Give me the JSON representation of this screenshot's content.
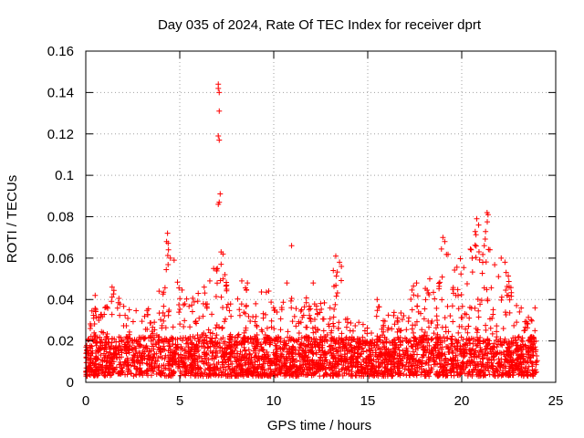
{
  "chart_data": {
    "type": "scatter",
    "title": "Day 035 of 2024, Rate Of TEC Index for receiver dprt",
    "xlabel": "GPS time / hours",
    "ylabel": "ROTI / TECUs",
    "xlim": [
      0,
      25
    ],
    "ylim": [
      0,
      0.16
    ],
    "xticks": [
      0,
      5,
      10,
      15,
      20,
      25
    ],
    "xtick_labels": [
      "0",
      "5",
      "10",
      "15",
      "20",
      "25"
    ],
    "yticks": [
      0,
      0.02,
      0.04,
      0.06,
      0.08,
      0.1,
      0.12,
      0.14,
      0.16
    ],
    "ytick_labels": [
      "0",
      "0.02",
      "0.04",
      "0.06",
      "0.08",
      "0.1",
      "0.12",
      "0.14",
      "0.16"
    ],
    "grid": true,
    "marker": "+",
    "marker_color": "#ff0000",
    "envelope": [
      [
        0.0,
        0.028
      ],
      [
        0.5,
        0.042
      ],
      [
        1.0,
        0.036
      ],
      [
        1.5,
        0.046
      ],
      [
        2.0,
        0.038
      ],
      [
        2.5,
        0.034
      ],
      [
        3.0,
        0.038
      ],
      [
        3.5,
        0.036
      ],
      [
        4.0,
        0.044
      ],
      [
        4.3,
        0.072
      ],
      [
        4.7,
        0.06
      ],
      [
        5.0,
        0.05
      ],
      [
        5.5,
        0.04
      ],
      [
        6.0,
        0.044
      ],
      [
        6.5,
        0.05
      ],
      [
        7.0,
        0.064
      ],
      [
        7.5,
        0.048
      ],
      [
        8.0,
        0.04
      ],
      [
        8.5,
        0.048
      ],
      [
        9.0,
        0.04
      ],
      [
        9.5,
        0.046
      ],
      [
        10.0,
        0.042
      ],
      [
        10.5,
        0.04
      ],
      [
        11.0,
        0.042
      ],
      [
        11.5,
        0.044
      ],
      [
        12.0,
        0.04
      ],
      [
        12.5,
        0.044
      ],
      [
        13.0,
        0.05
      ],
      [
        13.3,
        0.06
      ],
      [
        13.7,
        0.05
      ],
      [
        14.0,
        0.036
      ],
      [
        14.5,
        0.03
      ],
      [
        15.0,
        0.03
      ],
      [
        15.5,
        0.04
      ],
      [
        16.0,
        0.034
      ],
      [
        16.5,
        0.034
      ],
      [
        17.0,
        0.034
      ],
      [
        17.5,
        0.05
      ],
      [
        18.0,
        0.046
      ],
      [
        18.5,
        0.05
      ],
      [
        19.0,
        0.07
      ],
      [
        19.5,
        0.056
      ],
      [
        20.0,
        0.064
      ],
      [
        20.5,
        0.066
      ],
      [
        20.8,
        0.08
      ],
      [
        21.0,
        0.062
      ],
      [
        21.4,
        0.082
      ],
      [
        21.8,
        0.056
      ],
      [
        22.2,
        0.06
      ],
      [
        22.6,
        0.048
      ],
      [
        23.0,
        0.04
      ],
      [
        23.5,
        0.032
      ],
      [
        24.0,
        0.036
      ]
    ],
    "outliers": [
      {
        "x": 7.05,
        "y": 0.144
      },
      {
        "x": 7.05,
        "y": 0.142
      },
      {
        "x": 7.1,
        "y": 0.14
      },
      {
        "x": 7.1,
        "y": 0.131
      },
      {
        "x": 7.05,
        "y": 0.119
      },
      {
        "x": 7.1,
        "y": 0.117
      },
      {
        "x": 7.15,
        "y": 0.091
      },
      {
        "x": 7.1,
        "y": 0.087
      },
      {
        "x": 7.05,
        "y": 0.086
      },
      {
        "x": 7.2,
        "y": 0.063
      },
      {
        "x": 7.3,
        "y": 0.062
      },
      {
        "x": 7.2,
        "y": 0.057
      },
      {
        "x": 7.4,
        "y": 0.052
      },
      {
        "x": 7.0,
        "y": 0.055
      },
      {
        "x": 7.3,
        "y": 0.05
      },
      {
        "x": 10.95,
        "y": 0.066
      },
      {
        "x": 4.35,
        "y": 0.072
      },
      {
        "x": 4.3,
        "y": 0.068
      },
      {
        "x": 4.4,
        "y": 0.064
      },
      {
        "x": 4.5,
        "y": 0.06
      },
      {
        "x": 4.7,
        "y": 0.059
      },
      {
        "x": 21.35,
        "y": 0.082
      },
      {
        "x": 21.4,
        "y": 0.081
      },
      {
        "x": 20.8,
        "y": 0.079
      },
      {
        "x": 20.9,
        "y": 0.076
      },
      {
        "x": 19.0,
        "y": 0.07
      },
      {
        "x": 19.1,
        "y": 0.068
      },
      {
        "x": 21.2,
        "y": 0.066
      },
      {
        "x": 21.5,
        "y": 0.064
      },
      {
        "x": 20.5,
        "y": 0.064
      },
      {
        "x": 22.1,
        "y": 0.06
      },
      {
        "x": 22.3,
        "y": 0.058
      },
      {
        "x": 13.3,
        "y": 0.061
      },
      {
        "x": 13.5,
        "y": 0.058
      },
      {
        "x": 13.6,
        "y": 0.056
      },
      {
        "x": 8.3,
        "y": 0.049
      },
      {
        "x": 8.6,
        "y": 0.048
      },
      {
        "x": 6.6,
        "y": 0.049
      },
      {
        "x": 6.3,
        "y": 0.046
      },
      {
        "x": 10.7,
        "y": 0.048
      },
      {
        "x": 12.1,
        "y": 0.048
      },
      {
        "x": 17.6,
        "y": 0.048
      },
      {
        "x": 18.3,
        "y": 0.05
      },
      {
        "x": 15.5,
        "y": 0.04
      },
      {
        "x": 1.4,
        "y": 0.046
      },
      {
        "x": 0.5,
        "y": 0.042
      },
      {
        "x": 3.9,
        "y": 0.044
      },
      {
        "x": 23.9,
        "y": 0.036
      }
    ]
  }
}
